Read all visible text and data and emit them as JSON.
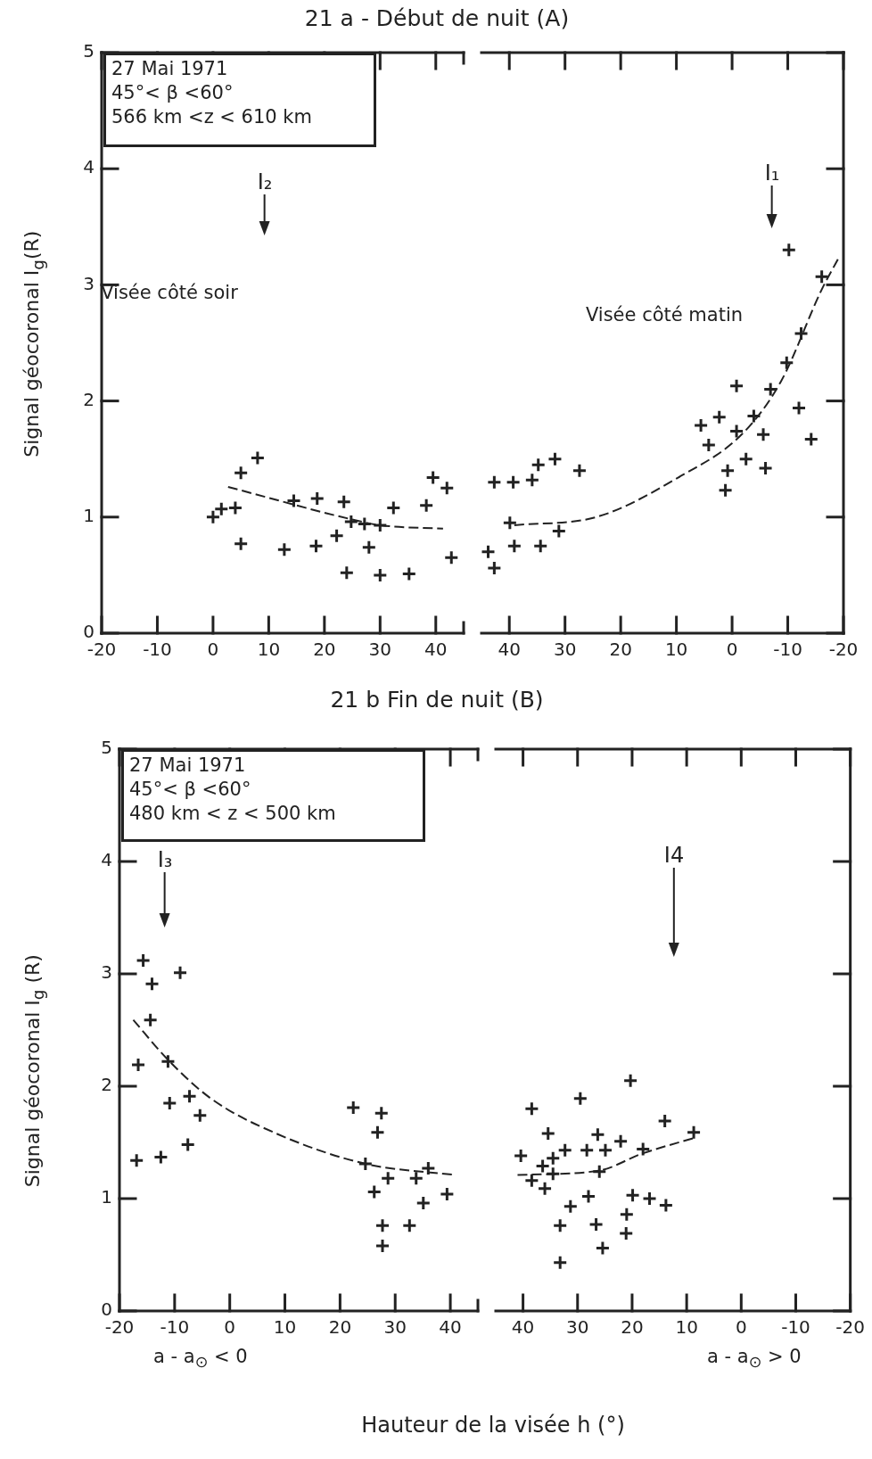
{
  "chart_data": [
    {
      "type": "scatter",
      "title": "21 a - Début de nuit   (A)",
      "ylabel": "Signal géocoronal I$_{g}$(R)",
      "xlim": [
        -20,
        45
      ],
      "ylim": [
        0,
        5
      ],
      "xticks": [
        -20,
        -10,
        0,
        10,
        20,
        30,
        40,
        {
          "value": 45,
          "label": null
        }
      ],
      "yticks": [
        0,
        1,
        2,
        3,
        4,
        5
      ],
      "series": [
        {
          "color": "#222222",
          "marker": "cross",
          "x": [
            0,
            1.5,
            4,
            5,
            8,
            5,
            12.8,
            14.5,
            18.7,
            18.5,
            22.2,
            23.5,
            24,
            24.8,
            27.2,
            28,
            30,
            30,
            32.4,
            35.2,
            38.3,
            39.5,
            42,
            42.8
          ],
          "values": [
            1.0,
            1.07,
            1.08,
            1.38,
            1.51,
            0.77,
            0.72,
            1.14,
            1.16,
            0.75,
            0.84,
            1.13,
            0.52,
            0.96,
            0.94,
            0.74,
            0.93,
            0.5,
            1.08,
            0.51,
            1.1,
            1.34,
            1.25,
            0.65
          ]
        },
        {
          "type": "line",
          "color": "#222222",
          "line_style": "dashed",
          "marker": "none",
          "x": [
            2.7,
            24.9,
            30,
            41.3
          ],
          "values": [
            1.26,
            0.98,
            0.93,
            0.9
          ]
        }
      ],
      "annotations": [
        "27 Mai 1971",
        "45°< β <60°",
        "566 km <z < 610 km",
        "Visée côté soir",
        "I₂"
      ]
    },
    {
      "type": "scatter",
      "tick_labels": "x",
      "xlim": [
        45,
        -20
      ],
      "ylim": [
        0,
        5
      ],
      "xticks": [
        40,
        30,
        20,
        10,
        0,
        -10,
        -20
      ],
      "yticks": [
        0,
        1,
        2,
        3,
        4,
        5
      ],
      "series": [
        {
          "color": "#222222",
          "marker": "cross",
          "x": [
            43.8,
            42.7,
            42.7,
            39.3,
            35.9,
            34.8,
            31.8,
            27.4,
            39.9,
            39.1,
            34.4,
            31.1,
            5.6,
            4.2,
            2.3,
            -0.8,
            -0.8,
            0.8,
            1.2,
            -2.5,
            -3.9,
            -5.6,
            -6,
            -6.9,
            -9.8,
            -12,
            -12.4,
            -10.2,
            -14.2,
            -16.1
          ],
          "values": [
            0.7,
            0.56,
            1.3,
            1.3,
            1.32,
            1.45,
            1.5,
            1.4,
            0.95,
            0.75,
            0.75,
            0.88,
            1.79,
            1.62,
            1.86,
            2.13,
            1.74,
            1.4,
            1.23,
            1.5,
            1.87,
            1.71,
            1.42,
            2.1,
            2.33,
            1.94,
            2.58,
            3.3,
            1.67,
            3.07
          ]
        },
        {
          "type": "line",
          "color": "#222222",
          "line_style": "dashed",
          "marker": "none",
          "x": [
            39.1,
            24.4,
            9.7,
            -1.9,
            -8.8,
            -16.1,
            -19
          ],
          "values": [
            0.93,
            1.0,
            1.34,
            1.72,
            2.17,
            2.96,
            3.22
          ]
        }
      ],
      "annotations": [
        "Visée côté matin",
        "I₁"
      ]
    },
    {
      "type": "scatter",
      "title": "21 b   Fin de nuit   (B)",
      "ylabel": "Signal géocoronal I$_{g}$ (R)",
      "xlabel": "Hauteur de la visée h (°)",
      "xlim": [
        -20,
        45
      ],
      "ylim": [
        0,
        5
      ],
      "xticks": [
        -20,
        -10,
        0,
        10,
        20,
        30,
        40,
        {
          "value": 45,
          "label": null
        }
      ],
      "yticks": [
        0,
        1,
        2,
        3,
        4,
        5
      ],
      "series": [
        {
          "color": "#222222",
          "marker": "cross",
          "x": [
            -15.7,
            -14.1,
            -9.0,
            -14.4,
            -16.6,
            -11.2,
            -10.9,
            -7.3,
            -5.4,
            -16.9,
            -12.5,
            -7.6,
            22.4,
            27.5,
            26.8,
            24.6,
            36,
            26.2,
            28.7,
            27.7,
            27.7,
            32.6,
            33.8,
            35.1,
            39.4
          ],
          "values": [
            3.12,
            2.91,
            3.01,
            2.59,
            2.19,
            2.22,
            1.85,
            1.91,
            1.74,
            1.34,
            1.37,
            1.48,
            1.81,
            1.76,
            1.59,
            1.31,
            1.27,
            1.06,
            1.18,
            0.76,
            0.58,
            0.76,
            1.18,
            0.96,
            1.04
          ]
        },
        {
          "type": "line",
          "color": "#222222",
          "line_style": "dashed",
          "marker": "none",
          "x": [
            -17.5,
            -11.3,
            -3.4,
            8.4,
            24.6,
            40.9
          ],
          "values": [
            2.59,
            2.24,
            1.89,
            1.58,
            1.31,
            1.21
          ]
        }
      ],
      "annotations": [
        "27 Mai 1971",
        "45°< β <60°",
        "480 km < z < 500 km",
        "a - a$_{⊙}$ < 0",
        "I₃"
      ]
    },
    {
      "type": "scatter",
      "tick_labels": "x",
      "xlim": [
        45,
        -20
      ],
      "ylim": [
        0,
        5
      ],
      "xticks": [
        40,
        30,
        20,
        10,
        0,
        -10,
        -20
      ],
      "yticks": [
        0,
        1,
        2,
        3,
        4,
        5
      ],
      "series": [
        {
          "color": "#222222",
          "marker": "cross",
          "x": [
            38.4,
            29.5,
            20.3,
            35.4,
            26.3,
            40.4,
            36.4,
            34.5,
            32.3,
            28.3,
            24.9,
            22.1,
            18,
            14,
            8.7,
            34.5,
            38.4,
            26,
            36,
            33.2,
            33.2,
            31.3,
            28,
            26.6,
            25.4,
            21.1,
            21,
            19.9,
            16.8,
            13.8
          ],
          "values": [
            1.8,
            1.89,
            2.05,
            1.58,
            1.57,
            1.38,
            1.29,
            1.36,
            1.43,
            1.43,
            1.43,
            1.51,
            1.44,
            1.69,
            1.59,
            1.22,
            1.16,
            1.24,
            1.09,
            0.76,
            0.43,
            0.93,
            1.02,
            0.77,
            0.56,
            0.69,
            0.86,
            1.03,
            1.0,
            0.94
          ]
        },
        {
          "type": "line",
          "color": "#222222",
          "line_style": "dashed",
          "marker": "none",
          "x": [
            41,
            26,
            18.2,
            8.6
          ],
          "values": [
            1.21,
            1.25,
            1.4,
            1.54
          ]
        }
      ],
      "annotations": [
        "a - a$_{⊙}$ > 0",
        "I4"
      ]
    }
  ]
}
